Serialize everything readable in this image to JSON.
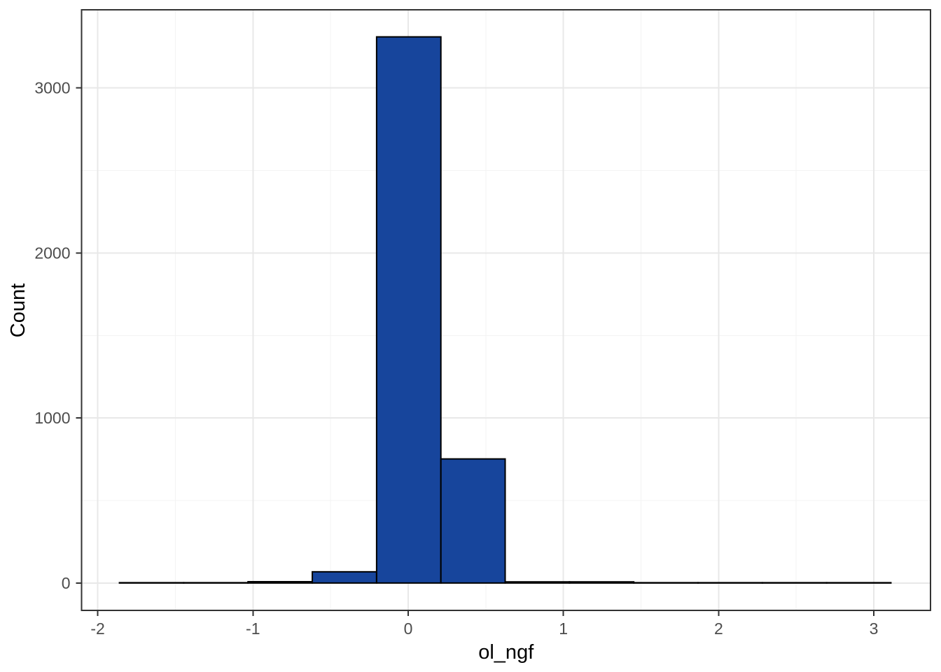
{
  "chart_data": {
    "type": "bar",
    "subtype": "histogram",
    "title": "",
    "xlabel": "ol_ngf",
    "ylabel": "Count",
    "x_ticks": [
      -2,
      -1,
      0,
      1,
      2,
      3
    ],
    "y_ticks": [
      0,
      1000,
      2000,
      3000
    ],
    "xlim": [
      -2.104,
      3.365
    ],
    "ylim": [
      -166,
      3474
    ],
    "grid": "major and minor, light gray, on white panel",
    "legend_position": "none",
    "bins": {
      "start": -1.86,
      "width": 0.41417,
      "counts": [
        2,
        2,
        8,
        68,
        3310,
        752,
        7,
        7,
        2,
        2,
        2,
        2
      ]
    },
    "notes": "single dominant bin at ~[-0.2, 0.21] with count ~3310; neighbor bin ~752; small bin ~68; remaining bins near zero forming a thin baseline outline from -1.86 to 3.11"
  },
  "style": {
    "background": "#ffffff",
    "bar_fill": "#17459c",
    "bar_stroke": "#000000",
    "panel_border": "#333333",
    "grid_major": "#e8e8e8",
    "grid_minor": "#f3f3f3",
    "tick_mark_color": "#333333",
    "tick_label_color": "#4d4d4d",
    "axis_title_color": "#000000"
  }
}
